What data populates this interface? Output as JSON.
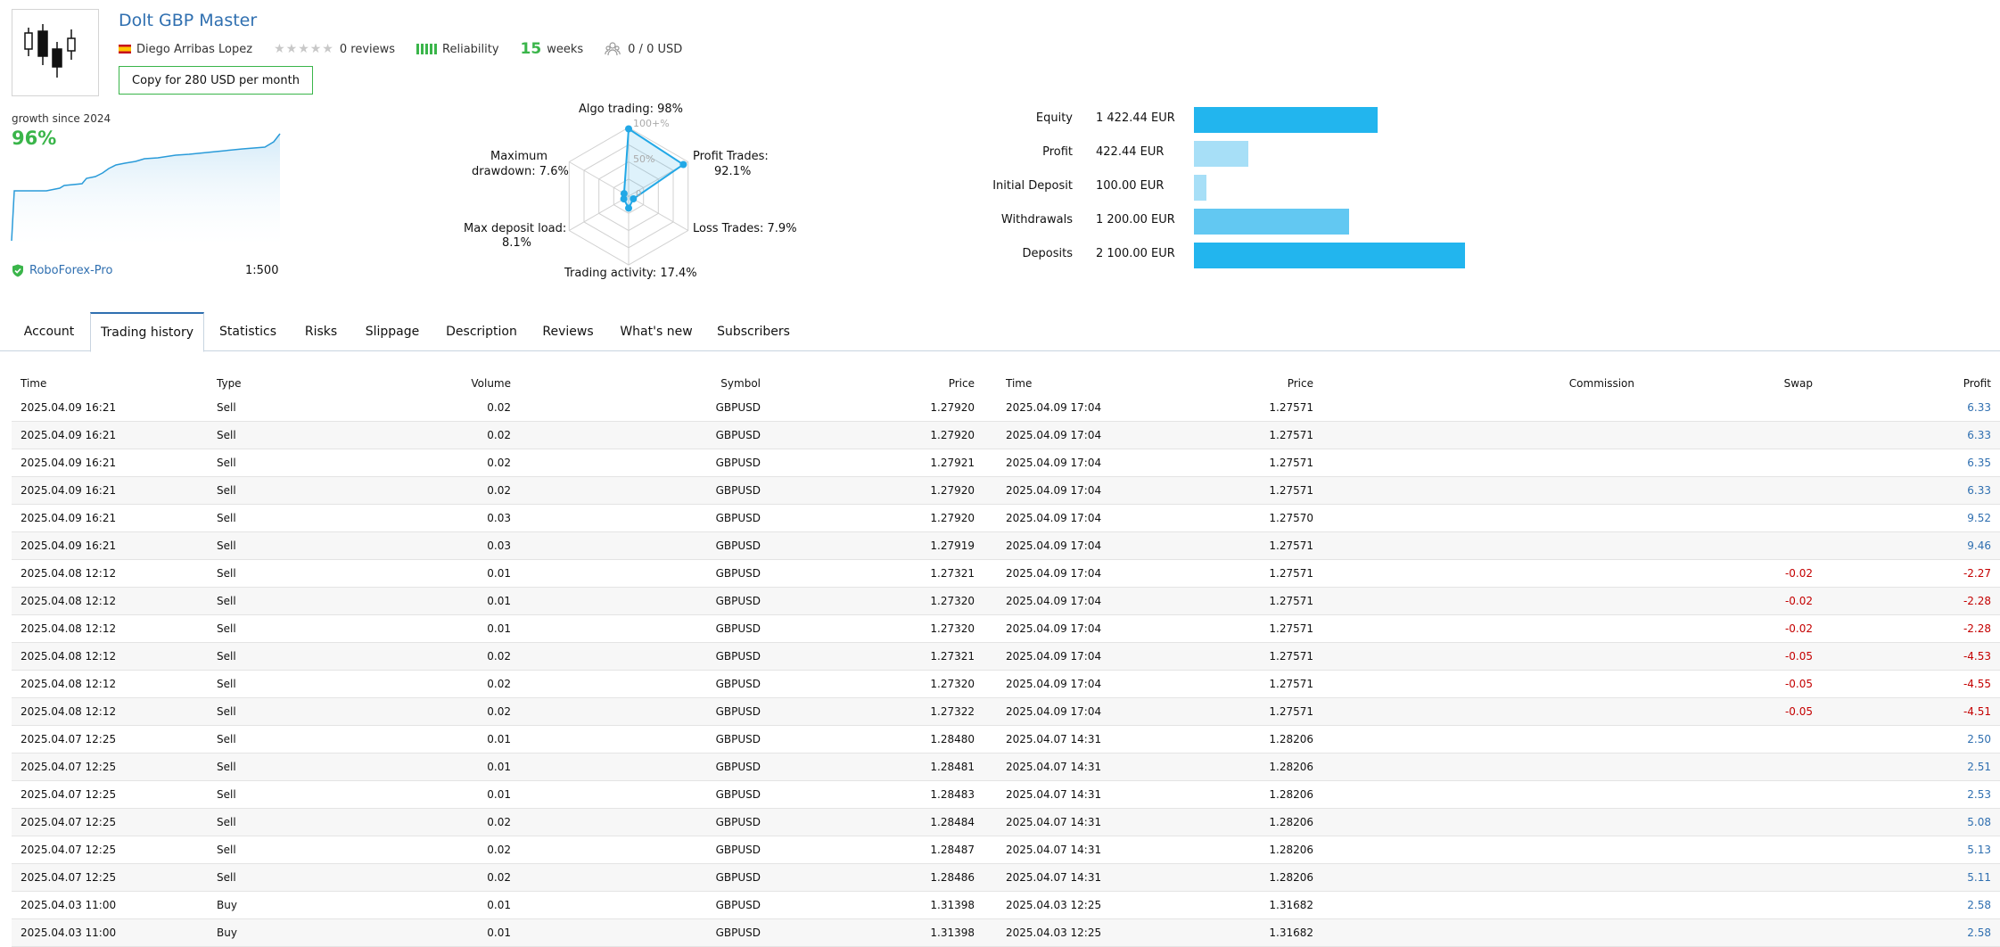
{
  "signal": {
    "title": "Dolt GBP Master",
    "author": "Diego Arribas Lopez",
    "reviews": "0 reviews",
    "reliability": "Reliability",
    "weeks_num": "15",
    "weeks_label": "weeks",
    "subscribers": "0  /  0 USD",
    "copy_button": "Copy for 280 USD per month"
  },
  "growth": {
    "label": "growth since 2024",
    "value": "96%",
    "broker": "RoboForex-Pro",
    "leverage": "1:500"
  },
  "radar": {
    "labels": {
      "algo": "Algo trading: 98%",
      "profit_trades_1": "Profit Trades:",
      "profit_trades_2": "92.1%",
      "loss_trades": "Loss Trades: 7.9%",
      "trading_activity": "Trading activity: 17.4%",
      "max_deposit_1": "Max deposit load:",
      "max_deposit_2": "8.1%",
      "max_dd_1": "Maximum",
      "max_dd_2": "drawdown: 7.6%",
      "scale_100": "100+%",
      "scale_50": "50%",
      "scale_0": "0"
    },
    "values_pct": [
      98,
      92.1,
      7.9,
      17.4,
      8.1,
      7.6
    ]
  },
  "balance": {
    "rows": [
      {
        "label": "Equity",
        "value": "1 422.44 EUR",
        "amount": 1422.44,
        "color": "#22b5ee"
      },
      {
        "label": "Profit",
        "value": "422.44 EUR",
        "amount": 422.44,
        "color": "#a7dff7"
      },
      {
        "label": "Initial Deposit",
        "value": "100.00 EUR",
        "amount": 100,
        "color": "#a7dff7"
      },
      {
        "label": "Withdrawals",
        "value": "1 200.00 EUR",
        "amount": 1200,
        "color": "#62c8f2"
      },
      {
        "label": "Deposits",
        "value": "2 100.00 EUR",
        "amount": 2100,
        "color": "#22b5ee"
      }
    ]
  },
  "tabs": [
    "Account",
    "Trading history",
    "Statistics",
    "Risks",
    "Slippage",
    "Description",
    "Reviews",
    "What's new",
    "Subscribers"
  ],
  "active_tab": 1,
  "table": {
    "headers": [
      "Time",
      "Type",
      "Volume",
      "Symbol",
      "Price",
      "Time",
      "Price",
      "Commission",
      "Swap",
      "Profit"
    ],
    "rows": [
      [
        "2025.04.09 16:21",
        "Sell",
        "0.02",
        "GBPUSD",
        "1.27920",
        "2025.04.09 17:04",
        "1.27571",
        "",
        "",
        "6.33"
      ],
      [
        "2025.04.09 16:21",
        "Sell",
        "0.02",
        "GBPUSD",
        "1.27920",
        "2025.04.09 17:04",
        "1.27571",
        "",
        "",
        "6.33"
      ],
      [
        "2025.04.09 16:21",
        "Sell",
        "0.02",
        "GBPUSD",
        "1.27921",
        "2025.04.09 17:04",
        "1.27571",
        "",
        "",
        "6.35"
      ],
      [
        "2025.04.09 16:21",
        "Sell",
        "0.02",
        "GBPUSD",
        "1.27920",
        "2025.04.09 17:04",
        "1.27571",
        "",
        "",
        "6.33"
      ],
      [
        "2025.04.09 16:21",
        "Sell",
        "0.03",
        "GBPUSD",
        "1.27920",
        "2025.04.09 17:04",
        "1.27570",
        "",
        "",
        "9.52"
      ],
      [
        "2025.04.09 16:21",
        "Sell",
        "0.03",
        "GBPUSD",
        "1.27919",
        "2025.04.09 17:04",
        "1.27571",
        "",
        "",
        "9.46"
      ],
      [
        "2025.04.08 12:12",
        "Sell",
        "0.01",
        "GBPUSD",
        "1.27321",
        "2025.04.09 17:04",
        "1.27571",
        "",
        "-0.02",
        "-2.27"
      ],
      [
        "2025.04.08 12:12",
        "Sell",
        "0.01",
        "GBPUSD",
        "1.27320",
        "2025.04.09 17:04",
        "1.27571",
        "",
        "-0.02",
        "-2.28"
      ],
      [
        "2025.04.08 12:12",
        "Sell",
        "0.01",
        "GBPUSD",
        "1.27320",
        "2025.04.09 17:04",
        "1.27571",
        "",
        "-0.02",
        "-2.28"
      ],
      [
        "2025.04.08 12:12",
        "Sell",
        "0.02",
        "GBPUSD",
        "1.27321",
        "2025.04.09 17:04",
        "1.27571",
        "",
        "-0.05",
        "-4.53"
      ],
      [
        "2025.04.08 12:12",
        "Sell",
        "0.02",
        "GBPUSD",
        "1.27320",
        "2025.04.09 17:04",
        "1.27571",
        "",
        "-0.05",
        "-4.55"
      ],
      [
        "2025.04.08 12:12",
        "Sell",
        "0.02",
        "GBPUSD",
        "1.27322",
        "2025.04.09 17:04",
        "1.27571",
        "",
        "-0.05",
        "-4.51"
      ],
      [
        "2025.04.07 12:25",
        "Sell",
        "0.01",
        "GBPUSD",
        "1.28480",
        "2025.04.07 14:31",
        "1.28206",
        "",
        "",
        "2.50"
      ],
      [
        "2025.04.07 12:25",
        "Sell",
        "0.01",
        "GBPUSD",
        "1.28481",
        "2025.04.07 14:31",
        "1.28206",
        "",
        "",
        "2.51"
      ],
      [
        "2025.04.07 12:25",
        "Sell",
        "0.01",
        "GBPUSD",
        "1.28483",
        "2025.04.07 14:31",
        "1.28206",
        "",
        "",
        "2.53"
      ],
      [
        "2025.04.07 12:25",
        "Sell",
        "0.02",
        "GBPUSD",
        "1.28484",
        "2025.04.07 14:31",
        "1.28206",
        "",
        "",
        "5.08"
      ],
      [
        "2025.04.07 12:25",
        "Sell",
        "0.02",
        "GBPUSD",
        "1.28487",
        "2025.04.07 14:31",
        "1.28206",
        "",
        "",
        "5.13"
      ],
      [
        "2025.04.07 12:25",
        "Sell",
        "0.02",
        "GBPUSD",
        "1.28486",
        "2025.04.07 14:31",
        "1.28206",
        "",
        "",
        "5.11"
      ],
      [
        "2025.04.03 11:00",
        "Buy",
        "0.01",
        "GBPUSD",
        "1.31398",
        "2025.04.03 12:25",
        "1.31682",
        "",
        "",
        "2.58"
      ],
      [
        "2025.04.03 11:00",
        "Buy",
        "0.01",
        "GBPUSD",
        "1.31398",
        "2025.04.03 12:25",
        "1.31682",
        "",
        "",
        "2.58"
      ]
    ]
  },
  "colors": {
    "accent": "#2f6fb0",
    "green": "#3ab54a",
    "negative": "#c40000",
    "bar_blue": "#22b5ee"
  },
  "icons": {
    "logo": "candlestick-logo",
    "flag": "spain-flag-icon",
    "rating": "star-rating-icon",
    "reliability": "reliability-bars-icon",
    "subscribers": "subscribers-icon",
    "broker": "shield-check-icon"
  }
}
